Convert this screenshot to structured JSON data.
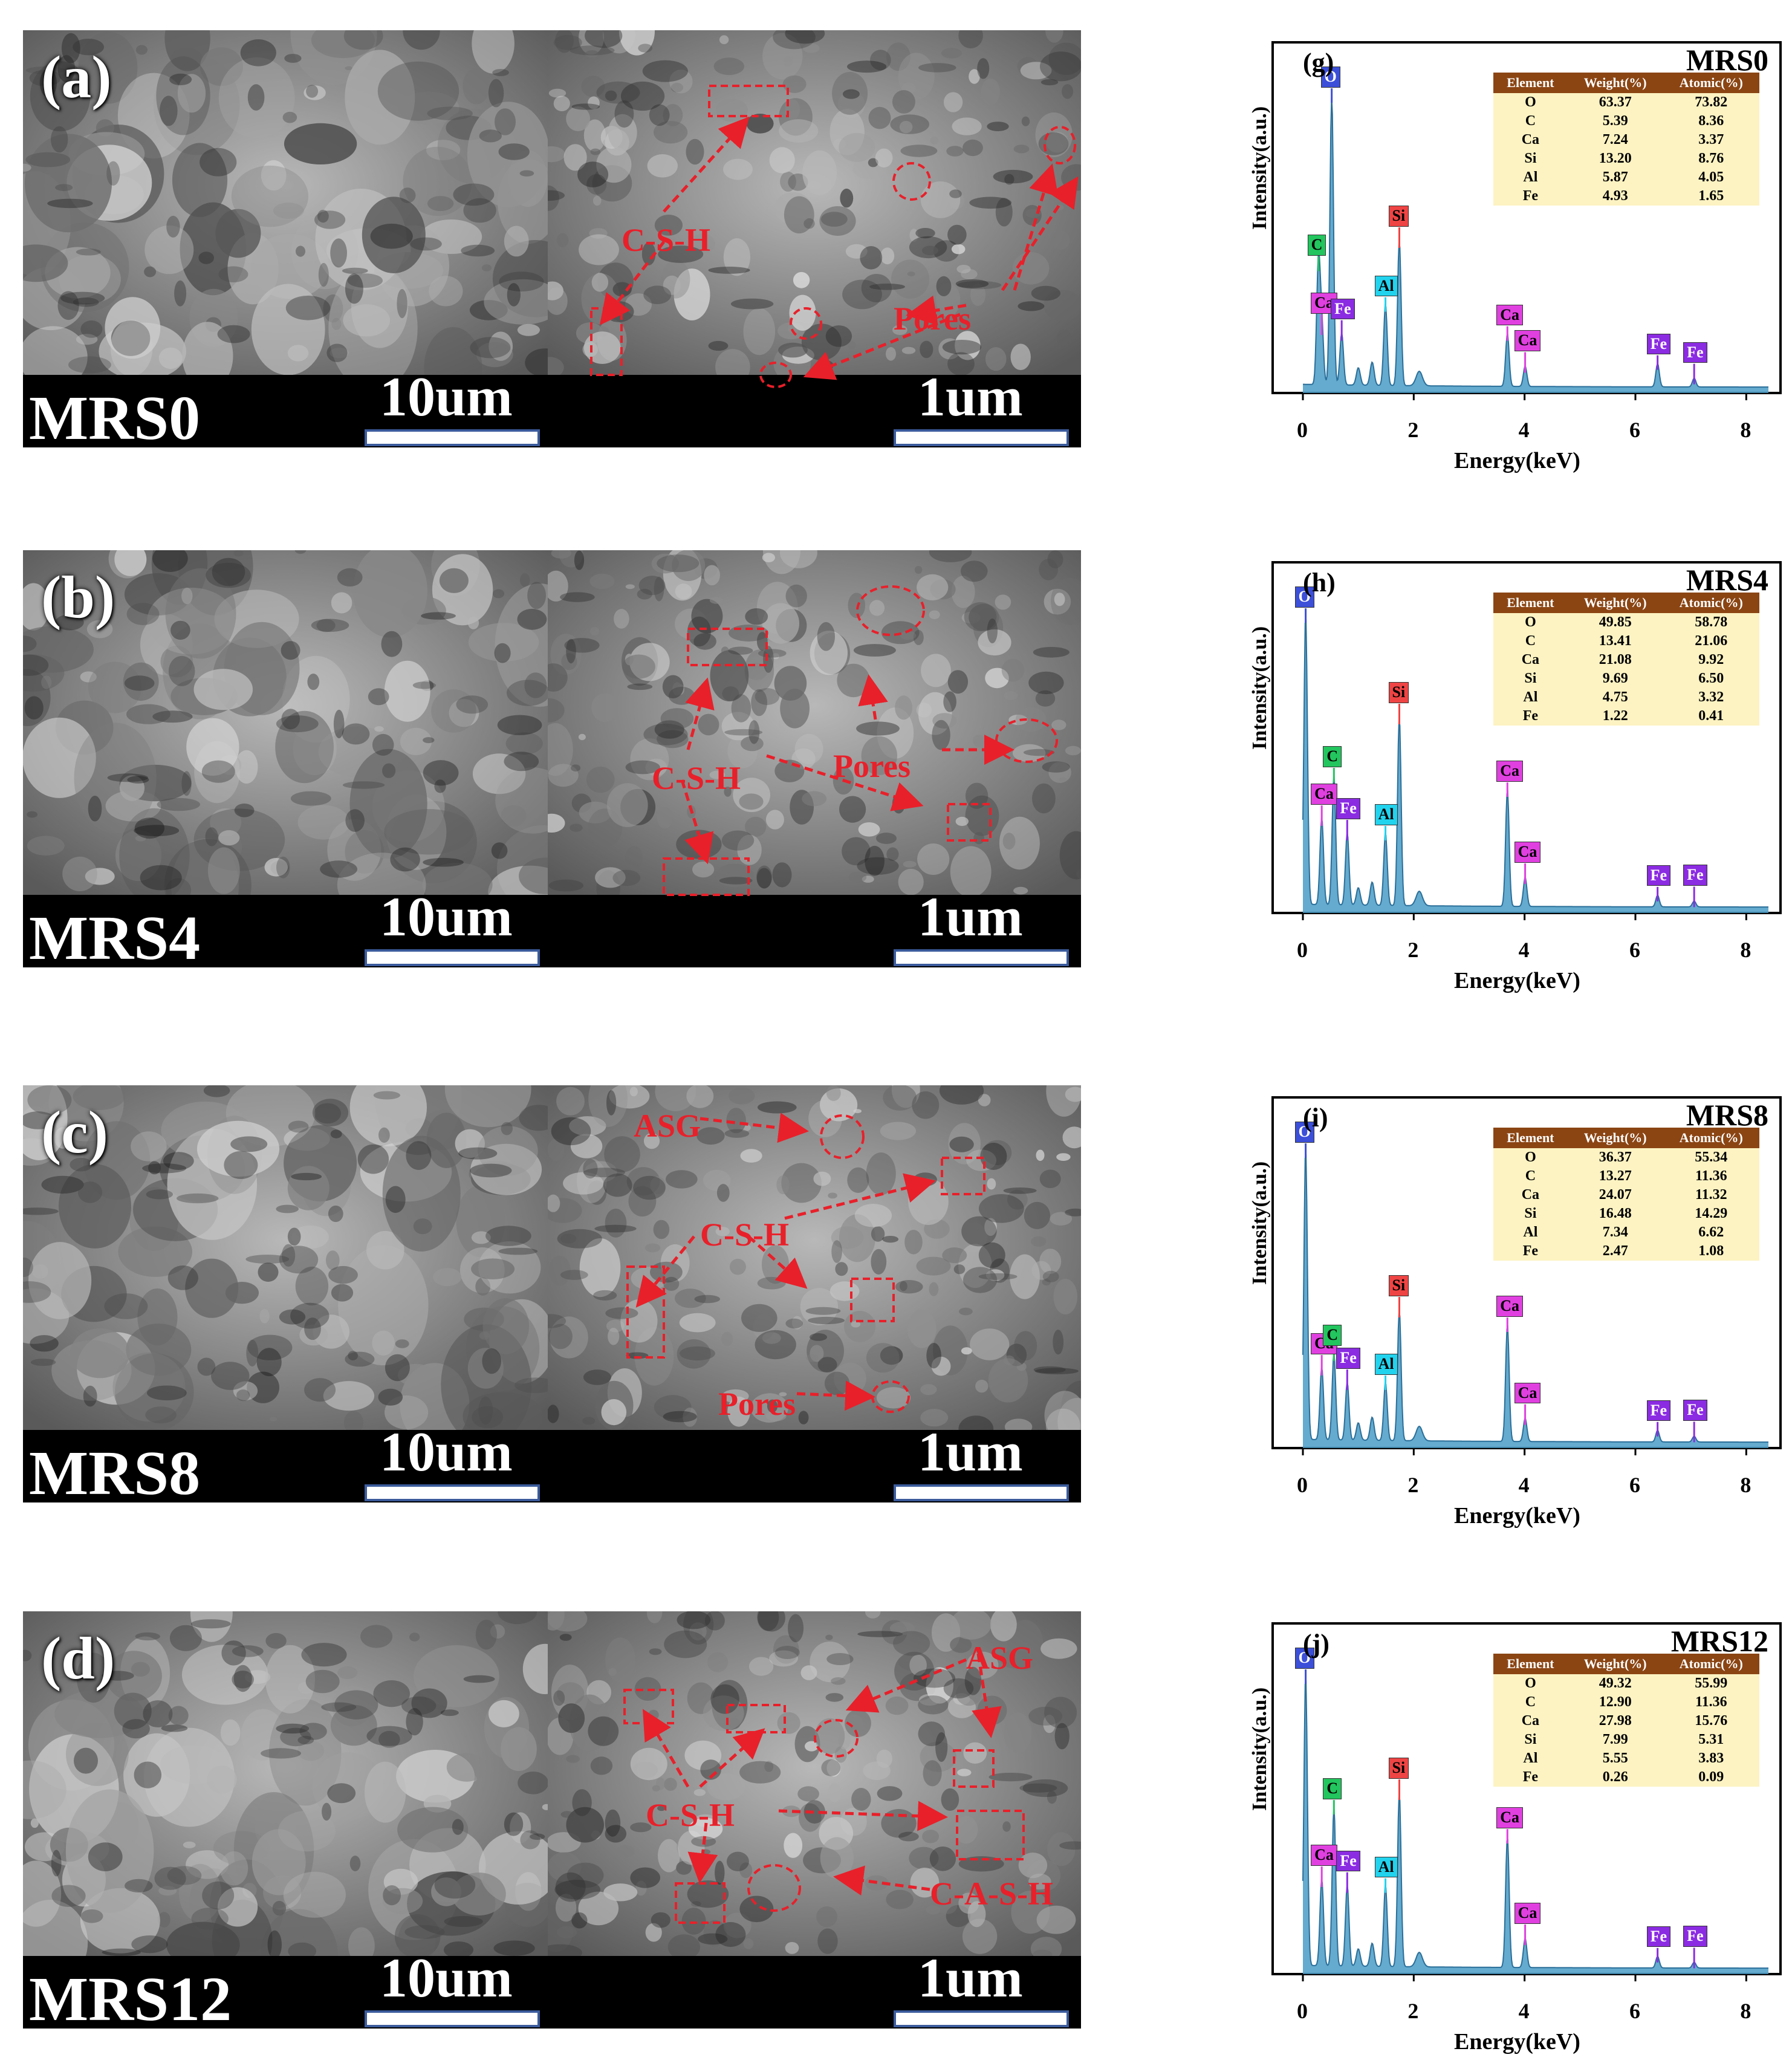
{
  "rows": [
    {
      "letter": "(a)",
      "sample": "MRS0",
      "scale_low": "10um",
      "scale_high": "1um",
      "annotations": [
        "C-S-H",
        "Pores"
      ],
      "eds": {
        "letter": "(g)",
        "title": "MRS0",
        "xlabel": "Energy(keV)",
        "ylabel": "Intensity(a.u.)",
        "xticks": [
          "0",
          "2",
          "4",
          "6",
          "8"
        ],
        "table": {
          "headers": [
            "Element",
            "Weight(%)",
            "Atomic(%)"
          ],
          "rows": [
            [
              "O",
              "63.37",
              "73.82"
            ],
            [
              "C",
              "5.39",
              "8.36"
            ],
            [
              "Ca",
              "7.24",
              "3.37"
            ],
            [
              "Si",
              "13.20",
              "8.76"
            ],
            [
              "Al",
              "5.87",
              "4.05"
            ],
            [
              "Fe",
              "4.93",
              "1.65"
            ]
          ]
        },
        "peaks": [
          {
            "el": "C",
            "x": 0.28,
            "y": 0.42
          },
          {
            "el": "Ca",
            "x": 0.34,
            "y": 0.2
          },
          {
            "el": "O",
            "x": 0.52,
            "y": 1.0
          },
          {
            "el": "Fe",
            "x": 0.7,
            "y": 0.18
          },
          {
            "el": "Al",
            "x": 1.49,
            "y": 0.28
          },
          {
            "el": "Si",
            "x": 1.74,
            "y": 0.5
          },
          {
            "el": "Ca",
            "x": 3.69,
            "y": 0.18
          },
          {
            "el": "Ca",
            "x": 4.01,
            "y": 0.07
          },
          {
            "el": "Fe",
            "x": 6.4,
            "y": 0.08
          },
          {
            "el": "Fe",
            "x": 7.06,
            "y": 0.03
          }
        ]
      }
    },
    {
      "letter": "(b)",
      "sample": "MRS4",
      "scale_low": "10um",
      "scale_high": "1um",
      "annotations": [
        "C-S-H",
        "Pores"
      ],
      "eds": {
        "letter": "(h)",
        "title": "MRS4",
        "xlabel": "Energy(keV)",
        "ylabel": "Intensity(a.u.)",
        "xticks": [
          "0",
          "2",
          "4",
          "6",
          "8"
        ],
        "table": {
          "headers": [
            "Element",
            "Weight(%)",
            "Atomic(%)"
          ],
          "rows": [
            [
              "O",
              "49.85",
              "58.78"
            ],
            [
              "C",
              "13.41",
              "21.06"
            ],
            [
              "Ca",
              "21.08",
              "9.92"
            ],
            [
              "Si",
              "9.69",
              "6.50"
            ],
            [
              "Al",
              "4.75",
              "3.32"
            ],
            [
              "Fe",
              "1.22",
              "0.41"
            ]
          ]
        },
        "peaks": [
          {
            "el": "O",
            "x": 0.05,
            "y": 1.0
          },
          {
            "el": "Ca",
            "x": 0.34,
            "y": 0.3
          },
          {
            "el": "C",
            "x": 0.56,
            "y": 0.45
          },
          {
            "el": "Fe",
            "x": 0.8,
            "y": 0.25
          },
          {
            "el": "Al",
            "x": 1.49,
            "y": 0.25
          },
          {
            "el": "Si",
            "x": 1.74,
            "y": 0.65
          },
          {
            "el": "Ca",
            "x": 3.69,
            "y": 0.4
          },
          {
            "el": "Ca",
            "x": 4.01,
            "y": 0.1
          },
          {
            "el": "Fe",
            "x": 6.4,
            "y": 0.04
          },
          {
            "el": "Fe",
            "x": 7.06,
            "y": 0.02
          }
        ]
      }
    },
    {
      "letter": "(c)",
      "sample": "MRS8",
      "scale_low": "10um",
      "scale_high": "1um",
      "annotations": [
        "ASG",
        "C-S-H",
        "Pores"
      ],
      "eds": {
        "letter": "(i)",
        "title": "MRS8",
        "xlabel": "Energy(keV)",
        "ylabel": "Intensity(a.u.)",
        "xticks": [
          "0",
          "2",
          "4",
          "6",
          "8"
        ],
        "table": {
          "headers": [
            "Element",
            "Weight(%)",
            "Atomic(%)"
          ],
          "rows": [
            [
              "O",
              "36.37",
              "55.34"
            ],
            [
              "C",
              "13.27",
              "11.36"
            ],
            [
              "Ca",
              "24.07",
              "11.32"
            ],
            [
              "Si",
              "16.48",
              "14.29"
            ],
            [
              "Al",
              "7.34",
              "6.62"
            ],
            [
              "Fe",
              "2.47",
              "1.08"
            ]
          ]
        },
        "peaks": [
          {
            "el": "O",
            "x": 0.05,
            "y": 1.0
          },
          {
            "el": "Ca",
            "x": 0.34,
            "y": 0.25
          },
          {
            "el": "C",
            "x": 0.56,
            "y": 0.3
          },
          {
            "el": "Fe",
            "x": 0.8,
            "y": 0.2
          },
          {
            "el": "Al",
            "x": 1.49,
            "y": 0.2
          },
          {
            "el": "Si",
            "x": 1.74,
            "y": 0.45
          },
          {
            "el": "Ca",
            "x": 3.69,
            "y": 0.4
          },
          {
            "el": "Ca",
            "x": 4.01,
            "y": 0.08
          },
          {
            "el": "Fe",
            "x": 6.4,
            "y": 0.04
          },
          {
            "el": "Fe",
            "x": 7.06,
            "y": 0.02
          }
        ]
      }
    },
    {
      "letter": "(d)",
      "sample": "MRS12",
      "scale_low": "10um",
      "scale_high": "1um",
      "annotations": [
        "ASG",
        "C-S-H",
        "C-A-S-H"
      ],
      "eds": {
        "letter": "(j)",
        "title": "MRS12",
        "xlabel": "Energy(keV)",
        "ylabel": "Intensity(a.u.)",
        "xticks": [
          "0",
          "2",
          "4",
          "6",
          "8"
        ],
        "table": {
          "headers": [
            "Element",
            "Weight(%)",
            "Atomic(%)"
          ],
          "rows": [
            [
              "O",
              "49.32",
              "55.99"
            ],
            [
              "C",
              "12.90",
              "11.36"
            ],
            [
              "Ca",
              "27.98",
              "15.76"
            ],
            [
              "Si",
              "7.99",
              "5.31"
            ],
            [
              "Al",
              "5.55",
              "3.83"
            ],
            [
              "Fe",
              "0.26",
              "0.09"
            ]
          ]
        },
        "peaks": [
          {
            "el": "O",
            "x": 0.05,
            "y": 1.0
          },
          {
            "el": "Ca",
            "x": 0.34,
            "y": 0.3
          },
          {
            "el": "C",
            "x": 0.56,
            "y": 0.55
          },
          {
            "el": "Fe",
            "x": 0.8,
            "y": 0.28
          },
          {
            "el": "Al",
            "x": 1.49,
            "y": 0.28
          },
          {
            "el": "Si",
            "x": 1.74,
            "y": 0.6
          },
          {
            "el": "Ca",
            "x": 3.69,
            "y": 0.45
          },
          {
            "el": "Ca",
            "x": 4.01,
            "y": 0.1
          },
          {
            "el": "Fe",
            "x": 6.4,
            "y": 0.04
          },
          {
            "el": "Fe",
            "x": 7.06,
            "y": 0.02
          }
        ]
      }
    }
  ],
  "label_colors": {
    "O": "#3b4fd8",
    "C": "#22c55e",
    "Ca": "#e040e0",
    "Fe": "#8b2be2",
    "Al": "#22d3ee",
    "Si": "#ef4444"
  },
  "spectrum_color": "#4a9cc7"
}
